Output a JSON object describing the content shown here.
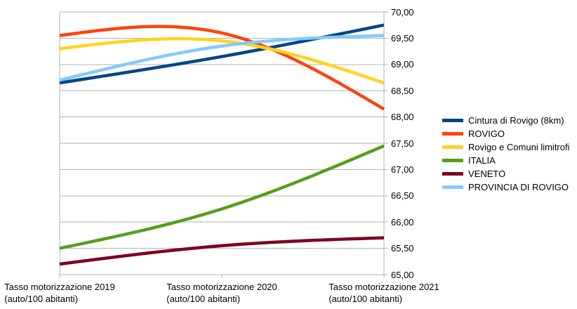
{
  "chart_data": {
    "type": "line",
    "smooth": true,
    "background": "#FFFFFF",
    "grid": true,
    "grid_color": "#B3B3B3",
    "axis_color": "#B3B3B3",
    "text_color": "#000000",
    "legend_position": "right",
    "categories": [
      {
        "label": "Tasso motorizzazione 2019",
        "sublabel": "(auto/100 abitanti)"
      },
      {
        "label": "Tasso motorizzazione 2020",
        "sublabel": "(auto/100 abitanti)"
      },
      {
        "label": "Tasso motorizzazione 2021",
        "sublabel": "(auto/100 abitanti)"
      }
    ],
    "series": [
      {
        "name": "Cintura di Rovigo (8km)",
        "color": "#004586",
        "values": [
          68.65,
          69.15,
          69.75
        ]
      },
      {
        "name": "ROVIGO",
        "color": "#FF420E",
        "values": [
          69.55,
          69.6,
          68.15
        ]
      },
      {
        "name": "Rovigo e Comuni limitrofi",
        "color": "#FFD320",
        "values": [
          69.3,
          69.45,
          68.65
        ]
      },
      {
        "name": "ITALIA",
        "color": "#579D1C",
        "values": [
          65.5,
          66.25,
          67.45
        ]
      },
      {
        "name": "VENETO",
        "color": "#7E0021",
        "values": [
          65.2,
          65.55,
          65.7
        ]
      },
      {
        "name": "PROVINCIA DI ROVIGO",
        "color": "#83CAFF",
        "values": [
          68.7,
          69.35,
          69.55
        ]
      }
    ],
    "y_axis": {
      "min": 65.0,
      "max": 70.0,
      "step": 0.5,
      "side": "right",
      "tick_labels": [
        "70,00",
        "69,50",
        "69,00",
        "68,50",
        "68,00",
        "67,50",
        "67,00",
        "66,50",
        "66,00",
        "65,50",
        "65,00"
      ]
    }
  }
}
